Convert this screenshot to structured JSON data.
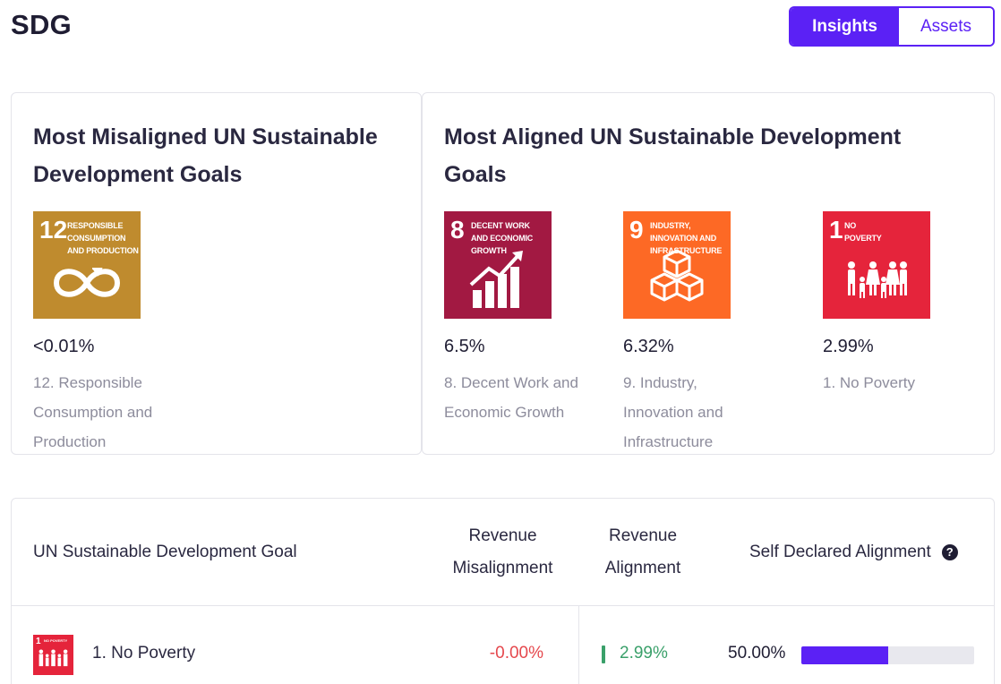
{
  "header": {
    "title": "SDG",
    "tabs": [
      {
        "label": "Insights",
        "active": true
      },
      {
        "label": "Assets",
        "active": false
      }
    ]
  },
  "colors": {
    "accent": "#5b21f5",
    "negative": "#e5484d",
    "positive": "#3aa06a"
  },
  "misaligned": {
    "title": "Most Misaligned UN Sustainable Development Goals",
    "goals": [
      {
        "number": "12",
        "tile_caption": "RESPONSIBLE CONSUMPTION AND PRODUCTION",
        "icon": "infinity-loop-icon",
        "color": "#bf8b2e",
        "value": "<0.01%",
        "label": "12. Responsible Consumption and Production"
      }
    ]
  },
  "aligned": {
    "title": "Most Aligned UN Sustainable Development Goals",
    "goals": [
      {
        "number": "8",
        "tile_caption": "DECENT WORK AND ECONOMIC GROWTH",
        "icon": "growth-chart-icon",
        "color": "#a21942",
        "value": "6.5%",
        "label": "8. Decent Work and Economic Growth"
      },
      {
        "number": "9",
        "tile_caption": "INDUSTRY, INNOVATION AND INFRASTRUCTURE",
        "icon": "cubes-icon",
        "color": "#fd6925",
        "value": "6.32%",
        "label": "9. Industry, Innovation and Infrastructure"
      },
      {
        "number": "1",
        "tile_caption": "NO POVERTY",
        "icon": "family-icon",
        "color": "#e5243b",
        "value": "2.99%",
        "label": "1. No Poverty"
      }
    ]
  },
  "table": {
    "headers": {
      "goal": "UN Sustainable Development Goal",
      "misalignment": "Revenue Misalignment",
      "alignment": "Revenue Alignment",
      "self_declared": "Self Declared Alignment",
      "help": "?"
    },
    "rows": [
      {
        "icon": "no-poverty-icon",
        "icon_number": "1",
        "icon_caption": "NO POVERTY",
        "goal": "1. No Poverty",
        "misalignment": "-0.00%",
        "alignment": "2.99%",
        "self_declared": "50.00%",
        "self_declared_fraction": 0.5
      }
    ]
  }
}
